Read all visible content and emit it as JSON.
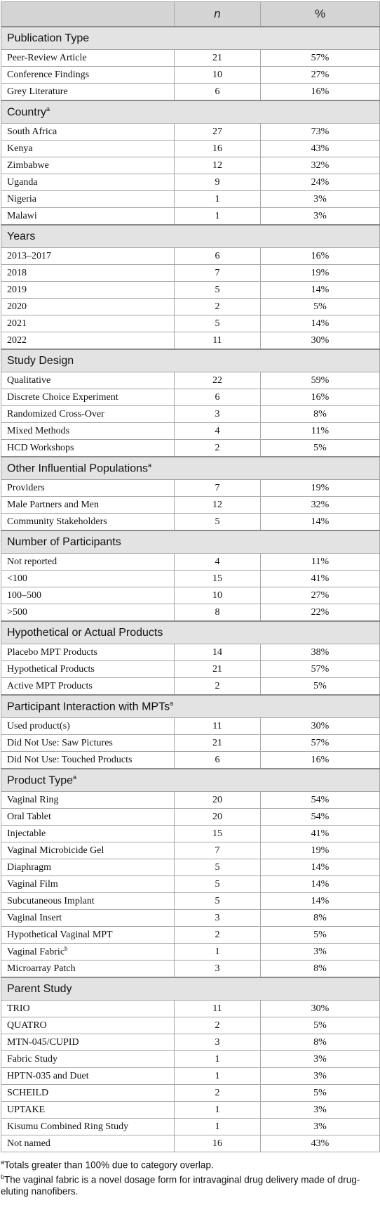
{
  "table": {
    "columns": [
      "n",
      "%"
    ],
    "sections": [
      {
        "title": "Publication Type",
        "rows": [
          [
            "Peer-Review Article",
            21,
            "57%"
          ],
          [
            "Conference Findings",
            10,
            "27%"
          ],
          [
            "Grey Literature",
            6,
            "16%"
          ]
        ]
      },
      {
        "title": "Country",
        "note": "a",
        "rows": [
          [
            "South Africa",
            27,
            "73%"
          ],
          [
            "Kenya",
            16,
            "43%"
          ],
          [
            "Zimbabwe",
            12,
            "32%"
          ],
          [
            "Uganda",
            9,
            "24%"
          ],
          [
            "Nigeria",
            1,
            "3%"
          ],
          [
            "Malawi",
            1,
            "3%"
          ]
        ]
      },
      {
        "title": "Years",
        "rows": [
          [
            "2013–2017",
            6,
            "16%"
          ],
          [
            "2018",
            7,
            "19%"
          ],
          [
            "2019",
            5,
            "14%"
          ],
          [
            "2020",
            2,
            "5%"
          ],
          [
            "2021",
            5,
            "14%"
          ],
          [
            "2022",
            11,
            "30%"
          ]
        ]
      },
      {
        "title": "Study Design",
        "rows": [
          [
            "Qualitative",
            22,
            "59%"
          ],
          [
            "Discrete Choice Experiment",
            6,
            "16%"
          ],
          [
            "Randomized Cross-Over",
            3,
            "8%"
          ],
          [
            "Mixed Methods",
            4,
            "11%"
          ],
          [
            "HCD Workshops",
            2,
            "5%"
          ]
        ]
      },
      {
        "title": "Other Influential Populations",
        "note": "a",
        "rows": [
          [
            "Providers",
            7,
            "19%"
          ],
          [
            "Male Partners and Men",
            12,
            "32%"
          ],
          [
            "Community Stakeholders",
            5,
            "14%"
          ]
        ]
      },
      {
        "title": "Number of Participants",
        "rows": [
          [
            "Not reported",
            4,
            "11%"
          ],
          [
            "<100",
            15,
            "41%"
          ],
          [
            "100–500",
            10,
            "27%"
          ],
          [
            ">500",
            8,
            "22%"
          ]
        ]
      },
      {
        "title": "Hypothetical or Actual Products",
        "rows": [
          [
            "Placebo MPT Products",
            14,
            "38%"
          ],
          [
            "Hypothetical Products",
            21,
            "57%"
          ],
          [
            "Active MPT Products",
            2,
            "5%"
          ]
        ]
      },
      {
        "title": "Participant Interaction with MPTs",
        "note": "a",
        "rows": [
          [
            "Used product(s)",
            11,
            "30%"
          ],
          [
            "Did Not Use: Saw Pictures",
            21,
            "57%"
          ],
          [
            "Did Not Use: Touched Products",
            6,
            "16%"
          ]
        ]
      },
      {
        "title": "Product Type",
        "note": "a",
        "rows": [
          [
            "Vaginal Ring",
            20,
            "54%"
          ],
          [
            "Oral Tablet",
            20,
            "54%"
          ],
          [
            "Injectable",
            15,
            "41%"
          ],
          [
            "Vaginal Microbicide Gel",
            7,
            "19%"
          ],
          [
            "Diaphragm",
            5,
            "14%"
          ],
          [
            "Vaginal Film",
            5,
            "14%"
          ],
          [
            "Subcutaneous Implant",
            5,
            "14%"
          ],
          [
            "Vaginal Insert",
            3,
            "8%"
          ],
          [
            "Hypothetical Vaginal MPT",
            2,
            "5%"
          ],
          [
            {
              "text": "Vaginal Fabric",
              "note": "b"
            },
            1,
            "3%"
          ],
          [
            "Microarray Patch",
            3,
            "8%"
          ]
        ]
      },
      {
        "title": "Parent Study",
        "rows": [
          [
            "TRIO",
            11,
            "30%"
          ],
          [
            "QUATRO",
            2,
            "5%"
          ],
          [
            "MTN-045/CUPID",
            3,
            "8%"
          ],
          [
            "Fabric Study",
            1,
            "3%"
          ],
          [
            "HPTN-035 and Duet",
            1,
            "3%"
          ],
          [
            "SCHEILD",
            2,
            "5%"
          ],
          [
            "UPTAKE",
            1,
            "3%"
          ],
          [
            "Kisumu Combined Ring Study",
            1,
            "3%"
          ],
          [
            "Not named",
            16,
            "43%"
          ]
        ]
      }
    ]
  },
  "footnotes": [
    {
      "mark": "a",
      "text": "Totals greater than 100% due to category overlap."
    },
    {
      "mark": "b",
      "text": "The vaginal fabric is a novel dosage form for intravaginal drug delivery made of drug-eluting nanofibers."
    }
  ]
}
